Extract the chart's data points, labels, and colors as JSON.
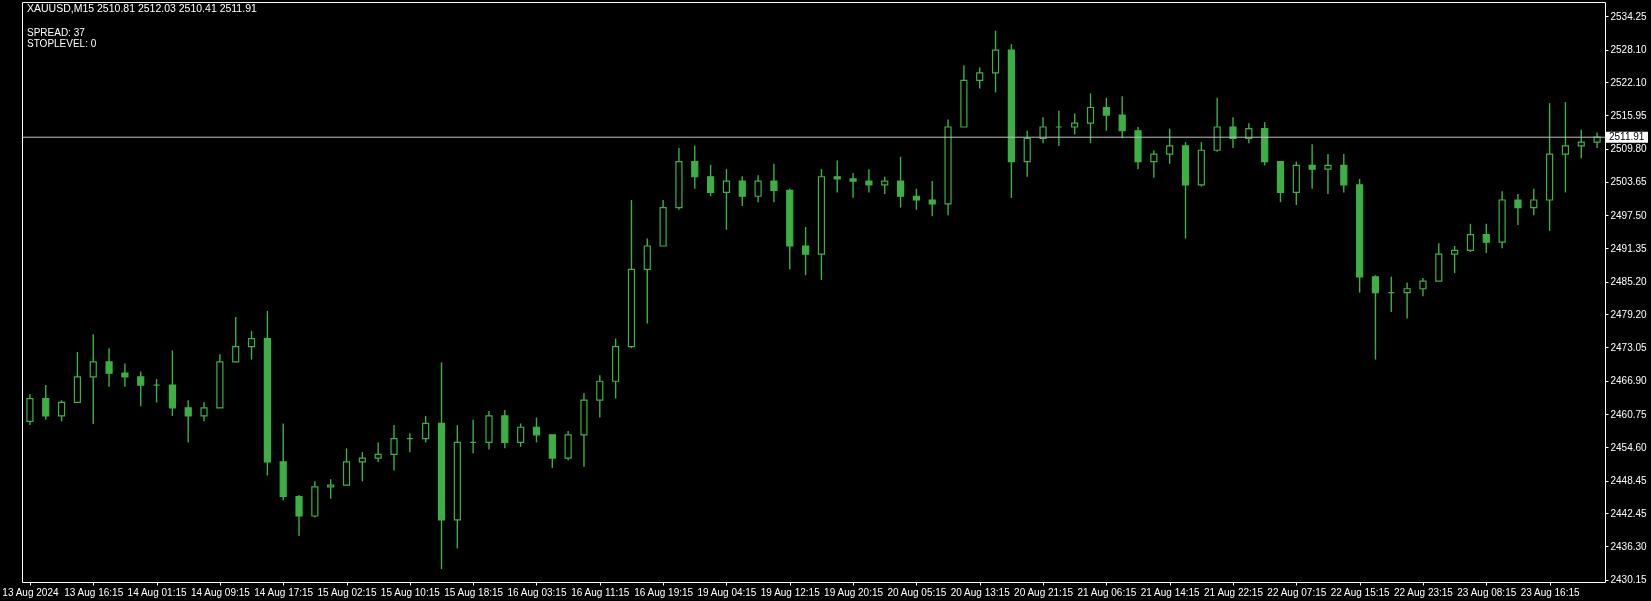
{
  "chart_data": {
    "type": "candlestick",
    "title": "XAUUSD,M15 2510.81 2512.03 2510.41 2511.91",
    "annotations": [
      "SPREAD: 37",
      "STOPLEVEL: 0"
    ],
    "categories": [
      "13 Aug 2024",
      null,
      null,
      null,
      "13 Aug 16:15",
      null,
      null,
      null,
      "14 Aug 01:15",
      null,
      null,
      null,
      "14 Aug 09:15",
      null,
      null,
      null,
      "14 Aug 17:15",
      null,
      null,
      null,
      "15 Aug 02:15",
      null,
      null,
      null,
      "15 Aug 10:15",
      null,
      null,
      null,
      "15 Aug 18:15",
      null,
      null,
      null,
      "16 Aug 03:15",
      null,
      null,
      null,
      "16 Aug 11:15",
      null,
      null,
      null,
      "16 Aug 19:15",
      null,
      null,
      null,
      "19 Aug 04:15",
      null,
      null,
      null,
      "19 Aug 12:15",
      null,
      null,
      null,
      "19 Aug 20:15",
      null,
      null,
      null,
      "20 Aug 05:15",
      null,
      null,
      null,
      "20 Aug 13:15",
      null,
      null,
      null,
      "20 Aug 21:15",
      null,
      null,
      null,
      "21 Aug 06:15",
      null,
      null,
      null,
      "21 Aug 14:15",
      null,
      null,
      null,
      "21 Aug 22:15",
      null,
      null,
      null,
      "22 Aug 07:15",
      null,
      null,
      null,
      "22 Aug 15:15",
      null,
      null,
      null,
      "22 Aug 23:15",
      null,
      null,
      null,
      "23 Aug 08:15",
      null,
      null,
      null,
      "23 Aug 16:15",
      null,
      null,
      null
    ],
    "ohlc": [
      [
        2459.4,
        2464.4,
        2458.7,
        2463.6
      ],
      [
        2463.6,
        2466.1,
        2459.7,
        2460.4
      ],
      [
        2460.4,
        2463.3,
        2459.4,
        2462.9
      ],
      [
        2462.9,
        2472.2,
        2462.9,
        2467.6
      ],
      [
        2467.6,
        2475.5,
        2458.9,
        2470.4
      ],
      [
        2470.4,
        2472.9,
        2465.8,
        2468.3
      ],
      [
        2468.3,
        2470.1,
        2465.8,
        2467.6
      ],
      [
        2467.6,
        2468.6,
        2462.2,
        2466.1
      ],
      [
        2466.1,
        2467.2,
        2462.9,
        2466.1
      ],
      [
        2466.1,
        2472.5,
        2460.4,
        2461.9
      ],
      [
        2461.9,
        2463.3,
        2455.5,
        2460.4
      ],
      [
        2460.4,
        2462.9,
        2459.4,
        2461.9
      ],
      [
        2461.9,
        2471.8,
        2461.9,
        2470.4
      ],
      [
        2470.4,
        2478.7,
        2470.4,
        2473.2
      ],
      [
        2473.2,
        2476.1,
        2470.8,
        2474.7
      ],
      [
        2474.7,
        2479.8,
        2449.4,
        2451.9
      ],
      [
        2451.9,
        2459.0,
        2444.8,
        2445.5
      ],
      [
        2445.5,
        2445.8,
        2438.2,
        2441.9
      ],
      [
        2441.9,
        2448.3,
        2441.6,
        2447.3
      ],
      [
        2447.3,
        2448.7,
        2445.1,
        2447.6
      ],
      [
        2447.6,
        2454.4,
        2447.5,
        2451.9
      ],
      [
        2451.9,
        2453.7,
        2448.3,
        2452.6
      ],
      [
        2452.6,
        2455.5,
        2451.9,
        2453.3
      ],
      [
        2453.3,
        2458.7,
        2450.3,
        2456.2
      ],
      [
        2456.2,
        2457.2,
        2453.7,
        2456.2
      ],
      [
        2456.2,
        2460.4,
        2455.5,
        2459.0
      ],
      [
        2459.0,
        2470.3,
        2432.1,
        2441.2
      ],
      [
        2441.2,
        2458.7,
        2435.9,
        2455.5
      ],
      [
        2455.5,
        2459.7,
        2453.5,
        2455.5
      ],
      [
        2455.5,
        2461.3,
        2454.2,
        2460.4
      ],
      [
        2460.4,
        2461.5,
        2454.4,
        2455.5
      ],
      [
        2455.5,
        2459.0,
        2454.7,
        2458.3
      ],
      [
        2458.3,
        2460.1,
        2455.5,
        2456.9
      ],
      [
        2456.9,
        2456.9,
        2450.8,
        2452.6
      ],
      [
        2452.6,
        2457.6,
        2452.2,
        2456.9
      ],
      [
        2456.9,
        2464.6,
        2451.0,
        2463.3
      ],
      [
        2463.3,
        2467.9,
        2460.1,
        2466.8
      ],
      [
        2466.8,
        2474.7,
        2463.6,
        2473.2
      ],
      [
        2473.2,
        2500.3,
        2472.9,
        2487.5
      ],
      [
        2487.5,
        2493.2,
        2477.5,
        2491.8
      ],
      [
        2491.8,
        2500.3,
        2491.8,
        2498.9
      ],
      [
        2498.9,
        2509.9,
        2498.5,
        2507.4
      ],
      [
        2507.4,
        2510.4,
        2502.4,
        2504.6
      ],
      [
        2504.6,
        2506.8,
        2501.0,
        2501.7
      ],
      [
        2501.7,
        2506.0,
        2494.8,
        2503.8
      ],
      [
        2503.8,
        2504.7,
        2499.2,
        2501.0
      ],
      [
        2501.0,
        2504.9,
        2499.9,
        2503.8
      ],
      [
        2503.8,
        2507.0,
        2499.9,
        2502.1
      ],
      [
        2502.1,
        2502.4,
        2487.5,
        2491.8
      ],
      [
        2491.8,
        2495.3,
        2486.4,
        2490.3
      ],
      [
        2490.3,
        2506.0,
        2485.5,
        2504.6
      ],
      [
        2504.6,
        2507.6,
        2501.7,
        2504.2
      ],
      [
        2504.2,
        2505.3,
        2500.7,
        2503.8
      ],
      [
        2503.8,
        2506.0,
        2501.7,
        2503.1
      ],
      [
        2503.1,
        2504.6,
        2501.4,
        2503.8
      ],
      [
        2503.8,
        2508.3,
        2498.9,
        2501.0
      ],
      [
        2501.0,
        2502.4,
        2498.5,
        2500.3
      ],
      [
        2500.3,
        2503.8,
        2497.3,
        2499.6
      ],
      [
        2499.6,
        2515.2,
        2497.5,
        2513.8
      ],
      [
        2513.8,
        2525.2,
        2513.8,
        2522.4
      ],
      [
        2522.4,
        2524.8,
        2520.9,
        2523.8
      ],
      [
        2523.8,
        2531.6,
        2520.2,
        2528.0
      ],
      [
        2528.0,
        2529.1,
        2500.7,
        2507.4
      ],
      [
        2507.4,
        2513.1,
        2504.6,
        2511.7
      ],
      [
        2511.7,
        2515.6,
        2510.8,
        2513.8
      ],
      [
        2513.8,
        2516.8,
        2510.3,
        2513.8
      ],
      [
        2513.8,
        2516.3,
        2512.4,
        2514.5
      ],
      [
        2514.5,
        2520.0,
        2510.8,
        2517.4
      ],
      [
        2517.4,
        2519.2,
        2513.1,
        2516.0
      ],
      [
        2516.0,
        2519.5,
        2511.7,
        2513.1
      ],
      [
        2513.1,
        2513.8,
        2506.0,
        2507.4
      ],
      [
        2507.4,
        2509.5,
        2504.4,
        2508.8
      ],
      [
        2508.8,
        2513.5,
        2507.0,
        2510.3
      ],
      [
        2510.3,
        2511.0,
        2493.2,
        2503.1
      ],
      [
        2503.1,
        2511.0,
        2502.8,
        2509.5
      ],
      [
        2509.5,
        2519.2,
        2509.2,
        2513.8
      ],
      [
        2513.8,
        2515.6,
        2509.9,
        2511.7
      ],
      [
        2511.7,
        2514.5,
        2510.8,
        2513.5
      ],
      [
        2513.5,
        2514.7,
        2506.7,
        2507.4
      ],
      [
        2507.4,
        2507.4,
        2499.9,
        2501.7
      ],
      [
        2501.7,
        2507.4,
        2499.4,
        2506.7
      ],
      [
        2506.7,
        2510.6,
        2502.4,
        2506.0
      ],
      [
        2506.0,
        2508.8,
        2501.4,
        2506.7
      ],
      [
        2506.7,
        2508.8,
        2501.7,
        2503.1
      ],
      [
        2503.1,
        2504.2,
        2483.2,
        2486.1
      ],
      [
        2486.1,
        2486.4,
        2470.8,
        2483.2
      ],
      [
        2483.2,
        2486.1,
        2479.6,
        2483.2
      ],
      [
        2483.2,
        2485.0,
        2478.4,
        2483.9
      ],
      [
        2483.9,
        2485.9,
        2482.5,
        2485.3
      ],
      [
        2485.3,
        2492.3,
        2485.3,
        2490.3
      ],
      [
        2490.3,
        2491.8,
        2486.8,
        2491.0
      ],
      [
        2491.0,
        2495.9,
        2490.7,
        2493.9
      ],
      [
        2493.9,
        2495.9,
        2490.5,
        2492.5
      ],
      [
        2492.5,
        2501.9,
        2491.4,
        2500.3
      ],
      [
        2500.3,
        2501.4,
        2495.7,
        2498.9
      ],
      [
        2498.9,
        2502.4,
        2497.5,
        2500.3
      ],
      [
        2500.3,
        2518.2,
        2494.6,
        2508.8
      ],
      [
        2508.8,
        2518.4,
        2501.7,
        2510.3
      ],
      [
        2510.3,
        2513.3,
        2508.0,
        2511.0
      ],
      [
        2511.0,
        2512.8,
        2509.9,
        2511.91
      ]
    ],
    "color": "#3cb043",
    "ylim": [
      2429.7,
      2536.9
    ],
    "yticks": [
      {
        "value": 2534.25,
        "label": "2534.25"
      },
      {
        "value": 2528.1,
        "label": "2528.10"
      },
      {
        "value": 2522.1,
        "label": "2522.10"
      },
      {
        "value": 2515.95,
        "label": "2515.95"
      },
      {
        "value": 2509.8,
        "label": "2509.80"
      },
      {
        "value": 2503.65,
        "label": "2503.65"
      },
      {
        "value": 2497.5,
        "label": "2497.50"
      },
      {
        "value": 2491.35,
        "label": "2491.35"
      },
      {
        "value": 2485.2,
        "label": "2485.20"
      },
      {
        "value": 2479.2,
        "label": "2479.20"
      },
      {
        "value": 2473.05,
        "label": "2473.05"
      },
      {
        "value": 2466.9,
        "label": "2466.90"
      },
      {
        "value": 2460.75,
        "label": "2460.75"
      },
      {
        "value": 2454.6,
        "label": "2454.60"
      },
      {
        "value": 2448.45,
        "label": "2448.45"
      },
      {
        "value": 2442.45,
        "label": "2442.45"
      },
      {
        "value": 2436.3,
        "label": "2436.30"
      },
      {
        "value": 2430.15,
        "label": "2430.15"
      }
    ],
    "ref_lines": [
      {
        "axis": "y",
        "value": 2511.91,
        "label": "2511.91",
        "color": "#c0c0c0"
      }
    ]
  }
}
